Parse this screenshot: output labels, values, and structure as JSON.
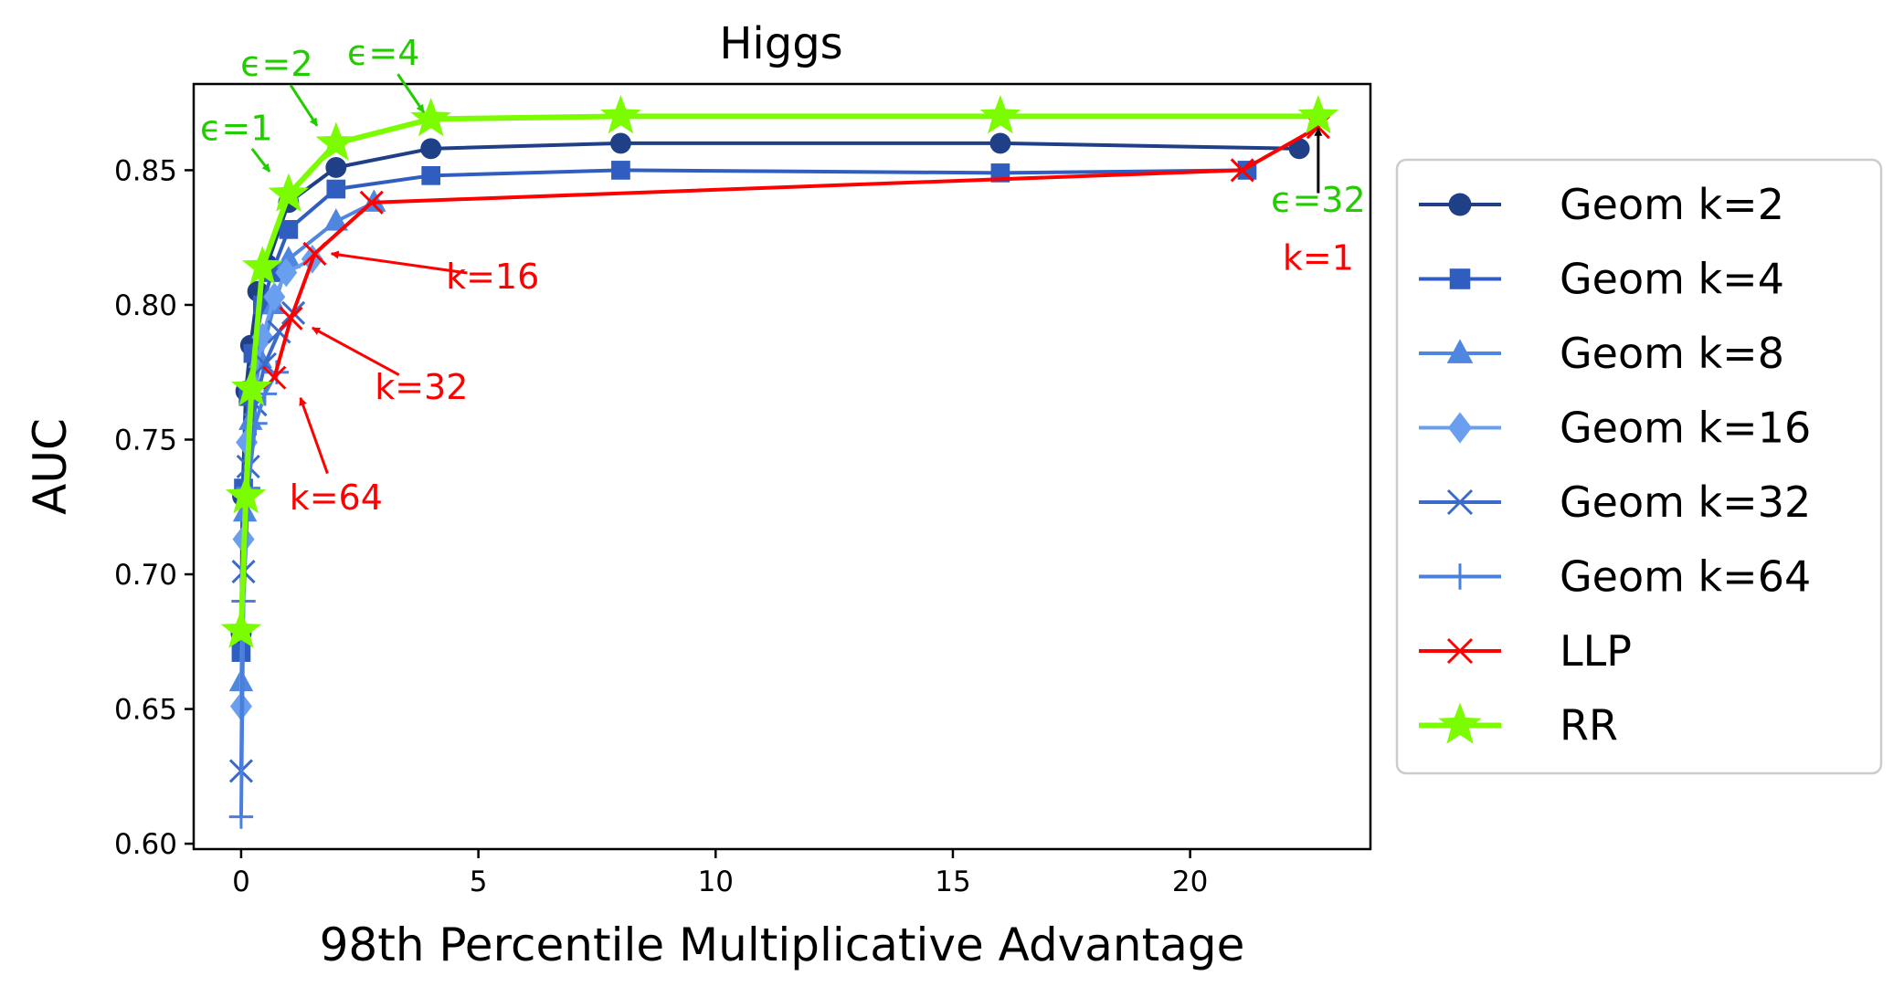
{
  "chart_data": {
    "type": "line",
    "title": "Higgs",
    "xlabel": "98th Percentile Multiplicative Advantage",
    "ylabel": "AUC",
    "xlim": [
      -1.0,
      23.8
    ],
    "ylim": [
      0.598,
      0.882
    ],
    "xticks": [
      0,
      5,
      10,
      15,
      20
    ],
    "xtick_labels": [
      "0",
      "5",
      "10",
      "15",
      "20"
    ],
    "yticks": [
      0.6,
      0.65,
      0.7,
      0.75,
      0.8,
      0.85
    ],
    "ytick_labels": [
      "0.60",
      "0.65",
      "0.70",
      "0.75",
      "0.80",
      "0.85"
    ],
    "grid": false,
    "legend_position": "outside-right",
    "series": [
      {
        "name": "Geom k=2",
        "color": "#1f3f86",
        "marker": "circle",
        "width": 4,
        "x": [
          0.0,
          0.03,
          0.1,
          0.2,
          0.35,
          0.55,
          1.0,
          2.0,
          4.0,
          8.0,
          16.0,
          22.3
        ],
        "y": [
          0.678,
          0.729,
          0.768,
          0.785,
          0.805,
          0.815,
          0.838,
          0.851,
          0.858,
          0.86,
          0.86,
          0.858
        ]
      },
      {
        "name": "Geom k=4",
        "color": "#2f5dc0",
        "marker": "square",
        "width": 4,
        "x": [
          0.0,
          0.05,
          0.15,
          0.25,
          0.45,
          0.65,
          1.0,
          2.0,
          4.0,
          8.0,
          16.0,
          21.2
        ],
        "y": [
          0.671,
          0.732,
          0.766,
          0.782,
          0.8,
          0.812,
          0.828,
          0.843,
          0.848,
          0.85,
          0.849,
          0.85
        ]
      },
      {
        "name": "Geom k=8",
        "color": "#4f86e0",
        "marker": "triangle",
        "width": 4,
        "x": [
          0.0,
          0.08,
          0.2,
          0.4,
          0.7,
          1.0,
          2.0,
          2.8
        ],
        "y": [
          0.66,
          0.723,
          0.757,
          0.78,
          0.8,
          0.817,
          0.831,
          0.838
        ]
      },
      {
        "name": "Geom k=16",
        "color": "#6a9ff0",
        "marker": "diamond",
        "width": 4,
        "x": [
          0.0,
          0.05,
          0.12,
          0.25,
          0.45,
          0.7,
          0.95,
          1.5
        ],
        "y": [
          0.651,
          0.713,
          0.749,
          0.77,
          0.788,
          0.803,
          0.812,
          0.817
        ]
      },
      {
        "name": "Geom k=32",
        "color": "#3a6bc9",
        "marker": "x",
        "width": 4,
        "x": [
          0.0,
          0.05,
          0.15,
          0.3,
          0.5,
          0.8,
          1.1
        ],
        "y": [
          0.627,
          0.701,
          0.74,
          0.763,
          0.778,
          0.79,
          0.797
        ]
      },
      {
        "name": "Geom k=64",
        "color": "#4a7fdd",
        "marker": "plus",
        "width": 4,
        "x": [
          0.0,
          0.05,
          0.15,
          0.3,
          0.5,
          0.75
        ],
        "y": [
          0.61,
          0.69,
          0.732,
          0.756,
          0.767,
          0.775
        ]
      },
      {
        "name": "LLP",
        "color": "#ff0000",
        "marker": "x",
        "width": 4,
        "x": [
          0.7,
          1.05,
          1.55,
          2.75,
          21.1,
          22.7
        ],
        "y": [
          0.773,
          0.795,
          0.819,
          0.838,
          0.85,
          0.866
        ]
      },
      {
        "name": "RR",
        "color": "#7cfc00",
        "marker": "star",
        "width": 6,
        "x": [
          0.0,
          0.1,
          0.22,
          0.45,
          1.0,
          2.0,
          4.0,
          8.0,
          16.0,
          22.7
        ],
        "y": [
          0.679,
          0.729,
          0.769,
          0.814,
          0.841,
          0.86,
          0.869,
          0.87,
          0.87,
          0.87
        ]
      }
    ],
    "annotations": [
      {
        "text": "ϵ=1",
        "color": "#22cc00",
        "xy": [
          0.6,
          0.8495
        ],
        "xytext": [
          -0.1,
          0.8655
        ]
      },
      {
        "text": "ϵ=2",
        "color": "#22cc00",
        "xy": [
          1.6,
          0.8665
        ],
        "xytext": [
          0.75,
          0.8895
        ]
      },
      {
        "text": "ϵ=4",
        "color": "#22cc00",
        "xy": [
          3.85,
          0.8715
        ],
        "xytext": [
          3.0,
          0.8935
        ]
      },
      {
        "text": "ϵ=32",
        "color": "#22cc00",
        "xy": null,
        "xytext": [
          22.7,
          0.839
        ]
      },
      {
        "text": "k=1",
        "color": "#ff0000",
        "xy": null,
        "xytext": [
          22.7,
          0.8175
        ]
      },
      {
        "text": "",
        "color": "#000000",
        "xy": [
          22.7,
          0.8655
        ],
        "xytext": [
          22.7,
          0.8415
        ]
      },
      {
        "text": "k=16",
        "color": "#ff0000",
        "xy": [
          1.9,
          0.819
        ],
        "xytext": [
          5.3,
          0.8105
        ]
      },
      {
        "text": "k=32",
        "color": "#ff0000",
        "xy": [
          1.5,
          0.7915
        ],
        "xytext": [
          3.8,
          0.7695
        ]
      },
      {
        "text": "k=64",
        "color": "#ff0000",
        "xy": [
          1.25,
          0.7655
        ],
        "xytext": [
          2.0,
          0.7285
        ]
      }
    ]
  }
}
